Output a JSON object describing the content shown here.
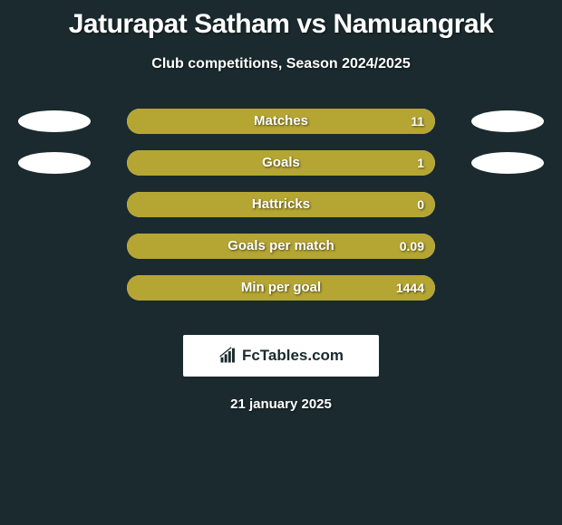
{
  "title": "Jaturapat Satham vs Namuangrak",
  "subtitle": "Club competitions, Season 2024/2025",
  "date": "21 january 2025",
  "logo_text": "FcTables.com",
  "colors": {
    "background": "#1a2a2e",
    "bar_fill": "#b5a532",
    "bar_track": "#f3f3f3",
    "ellipse": "#ffffff",
    "text": "#ffffff"
  },
  "stats": [
    {
      "label": "Matches",
      "value": "11",
      "show_left_ellipse": true,
      "show_right_ellipse": true,
      "fill_mode": "full",
      "left_pct": 100,
      "right_pct": 0
    },
    {
      "label": "Goals",
      "value": "1",
      "show_left_ellipse": true,
      "show_right_ellipse": true,
      "fill_mode": "full",
      "left_pct": 100,
      "right_pct": 0
    },
    {
      "label": "Hattricks",
      "value": "0",
      "show_left_ellipse": false,
      "show_right_ellipse": false,
      "fill_mode": "split",
      "left_pct": 50,
      "right_pct": 50
    },
    {
      "label": "Goals per match",
      "value": "0.09",
      "show_left_ellipse": false,
      "show_right_ellipse": false,
      "fill_mode": "split",
      "left_pct": 50,
      "right_pct": 50
    },
    {
      "label": "Min per goal",
      "value": "1444",
      "show_left_ellipse": false,
      "show_right_ellipse": false,
      "fill_mode": "full",
      "left_pct": 100,
      "right_pct": 0
    }
  ]
}
